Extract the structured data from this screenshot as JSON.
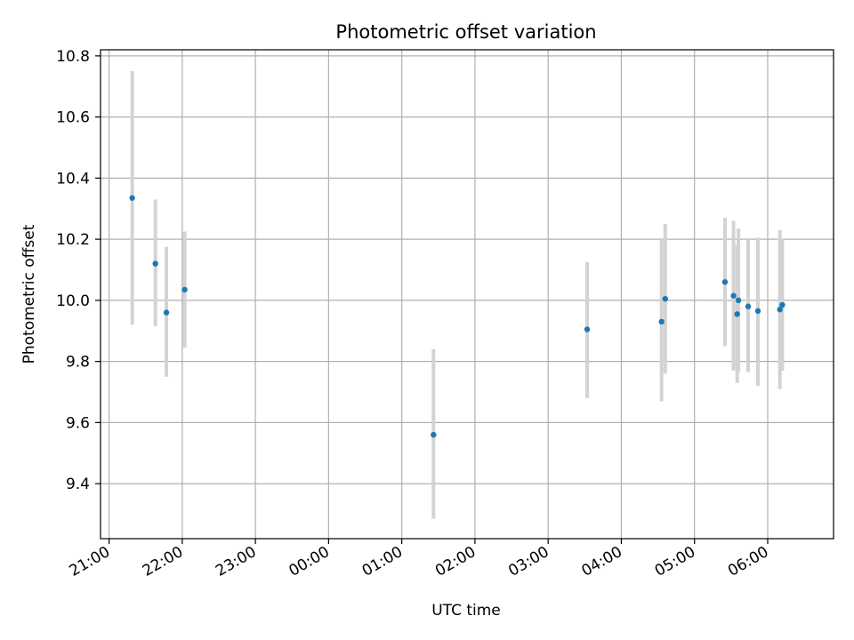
{
  "chart_data": {
    "type": "scatter",
    "title": "Photometric offset variation",
    "xlabel": "UTC time",
    "ylabel": "Photometric offset",
    "x_axis_kind": "time-of-day",
    "xlim": [
      "20:53",
      "06:54"
    ],
    "ylim": [
      9.22,
      10.82
    ],
    "x_ticks": [
      "21:00",
      "22:00",
      "23:00",
      "00:00",
      "01:00",
      "02:00",
      "03:00",
      "04:00",
      "05:00",
      "06:00"
    ],
    "y_ticks": [
      9.4,
      9.6,
      9.8,
      10.0,
      10.2,
      10.4,
      10.6,
      10.8
    ],
    "y_tick_labels": [
      "9.4",
      "9.6",
      "9.8",
      "10.0",
      "10.2",
      "10.4",
      "10.6",
      "10.8"
    ],
    "grid": true,
    "x_tick_label_rotation": "rotated",
    "colors": {
      "marker": "#1f77b4",
      "errorbar": "#d3d3d3",
      "grid": "#b0b0b0"
    },
    "points": [
      {
        "time": "21:19",
        "y": 10.335,
        "ylow": 9.92,
        "yhigh": 10.75
      },
      {
        "time": "21:38",
        "y": 10.12,
        "ylow": 9.915,
        "yhigh": 10.33
      },
      {
        "time": "21:47",
        "y": 9.96,
        "ylow": 9.75,
        "yhigh": 10.175
      },
      {
        "time": "22:02",
        "y": 10.035,
        "ylow": 9.845,
        "yhigh": 10.225
      },
      {
        "time": "01:26",
        "y": 9.56,
        "ylow": 9.285,
        "yhigh": 9.84
      },
      {
        "time": "03:32",
        "y": 9.905,
        "ylow": 9.68,
        "yhigh": 10.125
      },
      {
        "time": "04:33",
        "y": 9.93,
        "ylow": 9.67,
        "yhigh": 10.2
      },
      {
        "time": "04:36",
        "y": 10.005,
        "ylow": 9.76,
        "yhigh": 10.25
      },
      {
        "time": "05:25",
        "y": 10.06,
        "ylow": 9.85,
        "yhigh": 10.27
      },
      {
        "time": "05:32",
        "y": 10.015,
        "ylow": 9.77,
        "yhigh": 10.26
      },
      {
        "time": "05:35",
        "y": 9.955,
        "ylow": 9.73,
        "yhigh": 10.18
      },
      {
        "time": "05:36",
        "y": 10.0,
        "ylow": 9.765,
        "yhigh": 10.235
      },
      {
        "time": "05:44",
        "y": 9.98,
        "ylow": 9.765,
        "yhigh": 10.2
      },
      {
        "time": "05:52",
        "y": 9.965,
        "ylow": 9.72,
        "yhigh": 10.205
      },
      {
        "time": "06:10",
        "y": 9.97,
        "ylow": 9.71,
        "yhigh": 10.23
      },
      {
        "time": "06:12",
        "y": 9.985,
        "ylow": 9.77,
        "yhigh": 10.2
      }
    ]
  }
}
